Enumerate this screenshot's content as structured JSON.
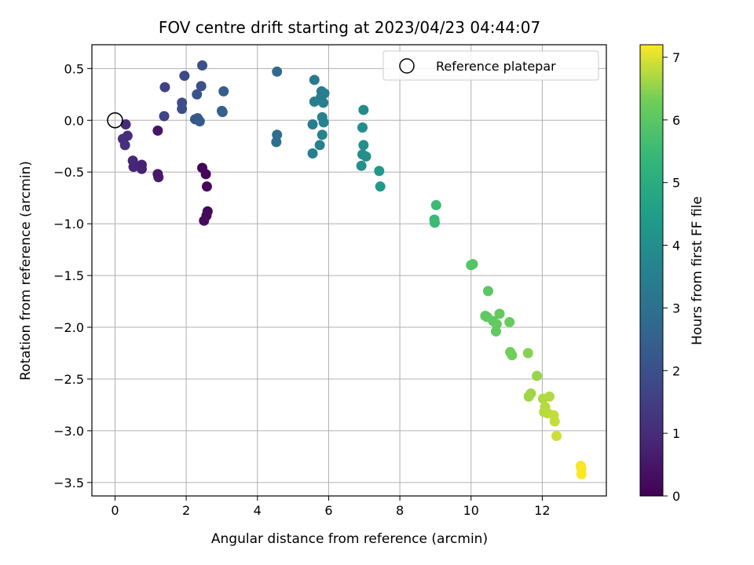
{
  "chart_data": {
    "type": "scatter",
    "title": "FOV centre drift starting at 2023/04/23 04:44:07",
    "xlabel": "Angular distance from reference (arcmin)",
    "ylabel": "Rotation from reference (arcmin)",
    "xlim": [
      -0.65,
      13.8
    ],
    "ylim": [
      -3.63,
      0.73
    ],
    "xticks": [
      0,
      2,
      4,
      6,
      8,
      10,
      12
    ],
    "yticks": [
      0.5,
      0.0,
      -0.5,
      -1.0,
      -1.5,
      -2.0,
      -2.5,
      -3.0,
      -3.5
    ],
    "grid": true,
    "colormap": "viridis",
    "colorbar": {
      "label": "Hours from first FF file",
      "range": [
        0,
        7.2
      ],
      "ticks": [
        0,
        1,
        2,
        3,
        4,
        5,
        6,
        7
      ]
    },
    "legend": {
      "placement": "top-right",
      "entries": [
        "Reference platepar"
      ]
    },
    "reference": {
      "x": 0,
      "y": 0,
      "label": "Reference platepar"
    },
    "points": [
      {
        "x": 2.45,
        "y": -0.46,
        "t": 0.08
      },
      {
        "x": 2.55,
        "y": -0.52,
        "t": 0.12
      },
      {
        "x": 2.58,
        "y": -0.64,
        "t": 0.15
      },
      {
        "x": 2.6,
        "y": -0.88,
        "t": 0.18
      },
      {
        "x": 2.57,
        "y": -0.92,
        "t": 0.2
      },
      {
        "x": 2.5,
        "y": -0.97,
        "t": 0.22
      },
      {
        "x": 1.2,
        "y": -0.1,
        "t": 0.45
      },
      {
        "x": 1.2,
        "y": -0.52,
        "t": 0.55
      },
      {
        "x": 1.22,
        "y": -0.55,
        "t": 0.58
      },
      {
        "x": 0.75,
        "y": -0.43,
        "t": 0.75
      },
      {
        "x": 0.75,
        "y": -0.47,
        "t": 0.78
      },
      {
        "x": 0.52,
        "y": -0.45,
        "t": 0.85
      },
      {
        "x": 0.5,
        "y": -0.39,
        "t": 0.88
      },
      {
        "x": 0.3,
        "y": -0.04,
        "t": 0.98
      },
      {
        "x": 0.35,
        "y": -0.15,
        "t": 1.0
      },
      {
        "x": 0.22,
        "y": -0.18,
        "t": 1.05
      },
      {
        "x": 0.28,
        "y": -0.24,
        "t": 1.1
      },
      {
        "x": 1.4,
        "y": 0.32,
        "t": 1.6
      },
      {
        "x": 1.38,
        "y": 0.04,
        "t": 1.7
      },
      {
        "x": 1.95,
        "y": 0.43,
        "t": 1.8
      },
      {
        "x": 1.88,
        "y": 0.17,
        "t": 1.9
      },
      {
        "x": 1.88,
        "y": 0.11,
        "t": 1.95
      },
      {
        "x": 2.42,
        "y": 0.33,
        "t": 2.0
      },
      {
        "x": 2.45,
        "y": 0.53,
        "t": 2.05
      },
      {
        "x": 2.3,
        "y": 0.25,
        "t": 2.1
      },
      {
        "x": 2.25,
        "y": 0.01,
        "t": 2.15
      },
      {
        "x": 2.32,
        "y": 0.02,
        "t": 2.2
      },
      {
        "x": 2.38,
        "y": -0.01,
        "t": 2.25
      },
      {
        "x": 3.05,
        "y": 0.28,
        "t": 2.4
      },
      {
        "x": 3.0,
        "y": 0.09,
        "t": 2.45
      },
      {
        "x": 3.02,
        "y": 0.08,
        "t": 2.5
      },
      {
        "x": 4.55,
        "y": 0.47,
        "t": 2.8
      },
      {
        "x": 4.55,
        "y": -0.14,
        "t": 2.9
      },
      {
        "x": 4.53,
        "y": -0.21,
        "t": 2.95
      },
      {
        "x": 5.6,
        "y": 0.39,
        "t": 3.3
      },
      {
        "x": 5.8,
        "y": 0.28,
        "t": 3.4
      },
      {
        "x": 5.78,
        "y": 0.22,
        "t": 3.45
      },
      {
        "x": 5.88,
        "y": 0.26,
        "t": 3.5
      },
      {
        "x": 5.6,
        "y": 0.18,
        "t": 3.45
      },
      {
        "x": 5.85,
        "y": 0.17,
        "t": 3.5
      },
      {
        "x": 5.82,
        "y": 0.03,
        "t": 3.55
      },
      {
        "x": 5.86,
        "y": -0.02,
        "t": 3.55
      },
      {
        "x": 5.55,
        "y": -0.04,
        "t": 3.4
      },
      {
        "x": 5.82,
        "y": -0.14,
        "t": 3.6
      },
      {
        "x": 5.75,
        "y": -0.24,
        "t": 3.55
      },
      {
        "x": 5.55,
        "y": -0.32,
        "t": 3.5
      },
      {
        "x": 6.98,
        "y": 0.1,
        "t": 3.9
      },
      {
        "x": 6.95,
        "y": -0.07,
        "t": 3.95
      },
      {
        "x": 6.98,
        "y": -0.24,
        "t": 4.0
      },
      {
        "x": 6.95,
        "y": -0.33,
        "t": 4.0
      },
      {
        "x": 7.05,
        "y": -0.35,
        "t": 4.05
      },
      {
        "x": 6.92,
        "y": -0.44,
        "t": 4.05
      },
      {
        "x": 7.42,
        "y": -0.49,
        "t": 4.3
      },
      {
        "x": 7.45,
        "y": -0.64,
        "t": 4.35
      },
      {
        "x": 9.02,
        "y": -0.82,
        "t": 5.5
      },
      {
        "x": 8.97,
        "y": -0.96,
        "t": 5.45
      },
      {
        "x": 8.98,
        "y": -0.99,
        "t": 5.5
      },
      {
        "x": 10.0,
        "y": -1.4,
        "t": 5.9
      },
      {
        "x": 10.05,
        "y": -1.39,
        "t": 5.92
      },
      {
        "x": 10.48,
        "y": -1.65,
        "t": 6.0
      },
      {
        "x": 10.4,
        "y": -1.89,
        "t": 6.05
      },
      {
        "x": 10.45,
        "y": -1.9,
        "t": 6.05
      },
      {
        "x": 10.62,
        "y": -1.94,
        "t": 6.08
      },
      {
        "x": 10.72,
        "y": -1.97,
        "t": 6.1
      },
      {
        "x": 10.7,
        "y": -2.04,
        "t": 6.1
      },
      {
        "x": 10.8,
        "y": -1.87,
        "t": 6.12
      },
      {
        "x": 11.08,
        "y": -1.95,
        "t": 6.2
      },
      {
        "x": 11.1,
        "y": -2.24,
        "t": 6.3
      },
      {
        "x": 11.15,
        "y": -2.27,
        "t": 6.32
      },
      {
        "x": 11.6,
        "y": -2.25,
        "t": 6.45
      },
      {
        "x": 11.85,
        "y": -2.47,
        "t": 6.55
      },
      {
        "x": 11.68,
        "y": -2.64,
        "t": 6.6
      },
      {
        "x": 11.62,
        "y": -2.67,
        "t": 6.6
      },
      {
        "x": 12.02,
        "y": -2.69,
        "t": 6.7
      },
      {
        "x": 12.2,
        "y": -2.67,
        "t": 6.72
      },
      {
        "x": 12.08,
        "y": -2.77,
        "t": 6.75
      },
      {
        "x": 12.05,
        "y": -2.82,
        "t": 6.75
      },
      {
        "x": 12.15,
        "y": -2.83,
        "t": 6.78
      },
      {
        "x": 12.32,
        "y": -2.85,
        "t": 6.82
      },
      {
        "x": 12.35,
        "y": -2.91,
        "t": 6.85
      },
      {
        "x": 12.4,
        "y": -3.05,
        "t": 6.9
      },
      {
        "x": 13.08,
        "y": -3.34,
        "t": 7.15
      },
      {
        "x": 13.1,
        "y": -3.37,
        "t": 7.18
      },
      {
        "x": 13.1,
        "y": -3.42,
        "t": 7.2
      }
    ]
  }
}
